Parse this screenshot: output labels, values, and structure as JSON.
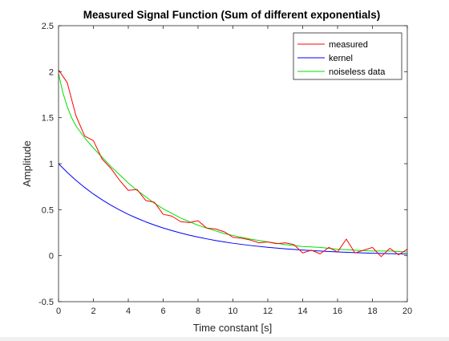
{
  "chart_data": {
    "type": "line",
    "title": "Measured Signal Function (Sum of different exponentials)",
    "xlabel": "Time constant [s]",
    "ylabel": "Amplitude",
    "xlim": [
      0,
      20
    ],
    "ylim": [
      -0.5,
      2.5
    ],
    "xticks": [
      0,
      2,
      4,
      6,
      8,
      10,
      12,
      14,
      16,
      18,
      20
    ],
    "yticks": [
      -0.5,
      0,
      0.5,
      1,
      1.5,
      2,
      2.5
    ],
    "xtick_labels": [
      "0",
      "2",
      "4",
      "6",
      "8",
      "10",
      "12",
      "14",
      "16",
      "18",
      "20"
    ],
    "ytick_labels": [
      "-0.5",
      "0",
      "0.5",
      "1",
      "1.5",
      "2",
      "2.5"
    ],
    "grid": false,
    "legend_position": "top-right",
    "series": [
      {
        "name": "measured",
        "color": "#ff0000",
        "x": [
          0,
          0.5,
          1,
          1.5,
          2,
          2.5,
          3,
          3.5,
          4,
          4.5,
          5,
          5.5,
          6,
          6.5,
          7,
          7.5,
          8,
          8.5,
          9,
          9.5,
          10,
          10.5,
          11,
          11.5,
          12,
          12.5,
          13,
          13.5,
          14,
          14.5,
          15,
          15.5,
          16,
          16.5,
          17,
          17.5,
          18,
          18.5,
          19,
          19.5,
          20
        ],
        "y": [
          2.02,
          1.88,
          1.52,
          1.3,
          1.25,
          1.05,
          0.95,
          0.82,
          0.71,
          0.72,
          0.6,
          0.58,
          0.45,
          0.43,
          0.37,
          0.36,
          0.38,
          0.3,
          0.29,
          0.26,
          0.2,
          0.19,
          0.17,
          0.14,
          0.15,
          0.13,
          0.14,
          0.12,
          0.03,
          0.06,
          0.02,
          0.09,
          0.04,
          0.18,
          0.03,
          0.06,
          0.09,
          -0.01,
          0.08,
          0.01,
          0.07
        ]
      },
      {
        "name": "kernel",
        "color": "#0000ff",
        "x": [
          0,
          0.5,
          1,
          1.5,
          2,
          2.5,
          3,
          3.5,
          4,
          4.5,
          5,
          5.5,
          6,
          6.5,
          7,
          7.5,
          8,
          8.5,
          9,
          9.5,
          10,
          11,
          12,
          13,
          14,
          15,
          16,
          17,
          18,
          19,
          20
        ],
        "y": [
          1.0,
          0.905,
          0.819,
          0.741,
          0.67,
          0.607,
          0.549,
          0.497,
          0.449,
          0.407,
          0.368,
          0.333,
          0.301,
          0.273,
          0.247,
          0.223,
          0.202,
          0.183,
          0.165,
          0.15,
          0.135,
          0.111,
          0.091,
          0.074,
          0.061,
          0.05,
          0.041,
          0.033,
          0.027,
          0.022,
          0.018
        ]
      },
      {
        "name": "noiseless data",
        "color": "#00e000",
        "x": [
          0,
          0.25,
          0.5,
          0.75,
          1,
          1.5,
          2,
          2.5,
          3,
          3.5,
          4,
          4.5,
          5,
          5.5,
          6,
          6.5,
          7,
          7.5,
          8,
          8.5,
          9,
          9.5,
          10,
          11,
          12,
          13,
          14,
          15,
          16,
          17,
          18,
          19,
          20
        ],
        "y": [
          1.98,
          1.77,
          1.62,
          1.5,
          1.41,
          1.28,
          1.17,
          1.07,
          0.97,
          0.88,
          0.79,
          0.71,
          0.64,
          0.57,
          0.51,
          0.46,
          0.41,
          0.37,
          0.33,
          0.3,
          0.27,
          0.24,
          0.22,
          0.18,
          0.15,
          0.12,
          0.1,
          0.09,
          0.07,
          0.06,
          0.05,
          0.05,
          0.04
        ]
      }
    ]
  }
}
